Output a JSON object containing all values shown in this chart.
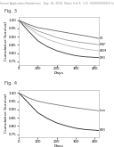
{
  "header_text": "Human Application Numberous   Sep. 34, 2010  Sheet 3 of 9   U.S. 0000000000/0 (v)",
  "fig3_label": "Fig. 3",
  "fig4_label": "Fig. 4",
  "xlabel": "Days",
  "ylabel": "Cumulative Survival",
  "ylim": [
    0.73,
    1.02
  ],
  "xlim": [
    0,
    420
  ],
  "xticks": [
    0,
    100,
    200,
    300,
    400
  ],
  "yticks": [
    0.75,
    0.8,
    0.85,
    0.9,
    0.95,
    1.0
  ],
  "fig3_curves": [
    {
      "x": [
        0,
        50,
        100,
        150,
        200,
        250,
        300,
        350,
        400,
        420
      ],
      "y": [
        1.0,
        0.975,
        0.955,
        0.945,
        0.935,
        0.925,
        0.915,
        0.905,
        0.895,
        0.89
      ],
      "color": "#666666",
      "lw": 0.6,
      "label": "P4"
    },
    {
      "x": [
        0,
        50,
        100,
        150,
        200,
        250,
        300,
        350,
        400,
        420
      ],
      "y": [
        1.0,
        0.965,
        0.935,
        0.915,
        0.895,
        0.88,
        0.87,
        0.862,
        0.855,
        0.852
      ],
      "color": "#999999",
      "lw": 0.6,
      "label": "BNP"
    },
    {
      "x": [
        0,
        50,
        100,
        150,
        200,
        250,
        300,
        350,
        400,
        420
      ],
      "y": [
        1.0,
        0.955,
        0.915,
        0.885,
        0.865,
        0.848,
        0.835,
        0.825,
        0.818,
        0.815
      ],
      "color": "#bbbbbb",
      "lw": 0.6,
      "label": "ADM"
    },
    {
      "x": [
        0,
        50,
        100,
        150,
        200,
        250,
        300,
        350,
        400,
        420
      ],
      "y": [
        1.0,
        0.935,
        0.875,
        0.84,
        0.815,
        0.798,
        0.785,
        0.778,
        0.775,
        0.773
      ],
      "color": "#333333",
      "lw": 0.6,
      "label": "BMI"
    }
  ],
  "fig4_curves": [
    {
      "x": [
        0,
        50,
        100,
        150,
        200,
        250,
        300,
        350,
        400,
        420
      ],
      "y": [
        1.0,
        0.97,
        0.95,
        0.938,
        0.928,
        0.918,
        0.91,
        0.902,
        0.895,
        0.892
      ],
      "color": "#777777",
      "lw": 0.6,
      "label": "Low"
    },
    {
      "x": [
        0,
        50,
        100,
        150,
        200,
        250,
        300,
        350,
        400,
        420
      ],
      "y": [
        1.0,
        0.94,
        0.88,
        0.845,
        0.818,
        0.8,
        0.786,
        0.778,
        0.774,
        0.772
      ],
      "color": "#222222",
      "lw": 0.6,
      "label": "BMI"
    }
  ],
  "bg_color": "#ffffff",
  "plot_bg": "#ffffff",
  "header_fontsize": 2.2,
  "label_fontsize": 3.2,
  "tick_fontsize": 2.8,
  "figlabel_fontsize": 3.8,
  "legend_fontsize": 2.6
}
